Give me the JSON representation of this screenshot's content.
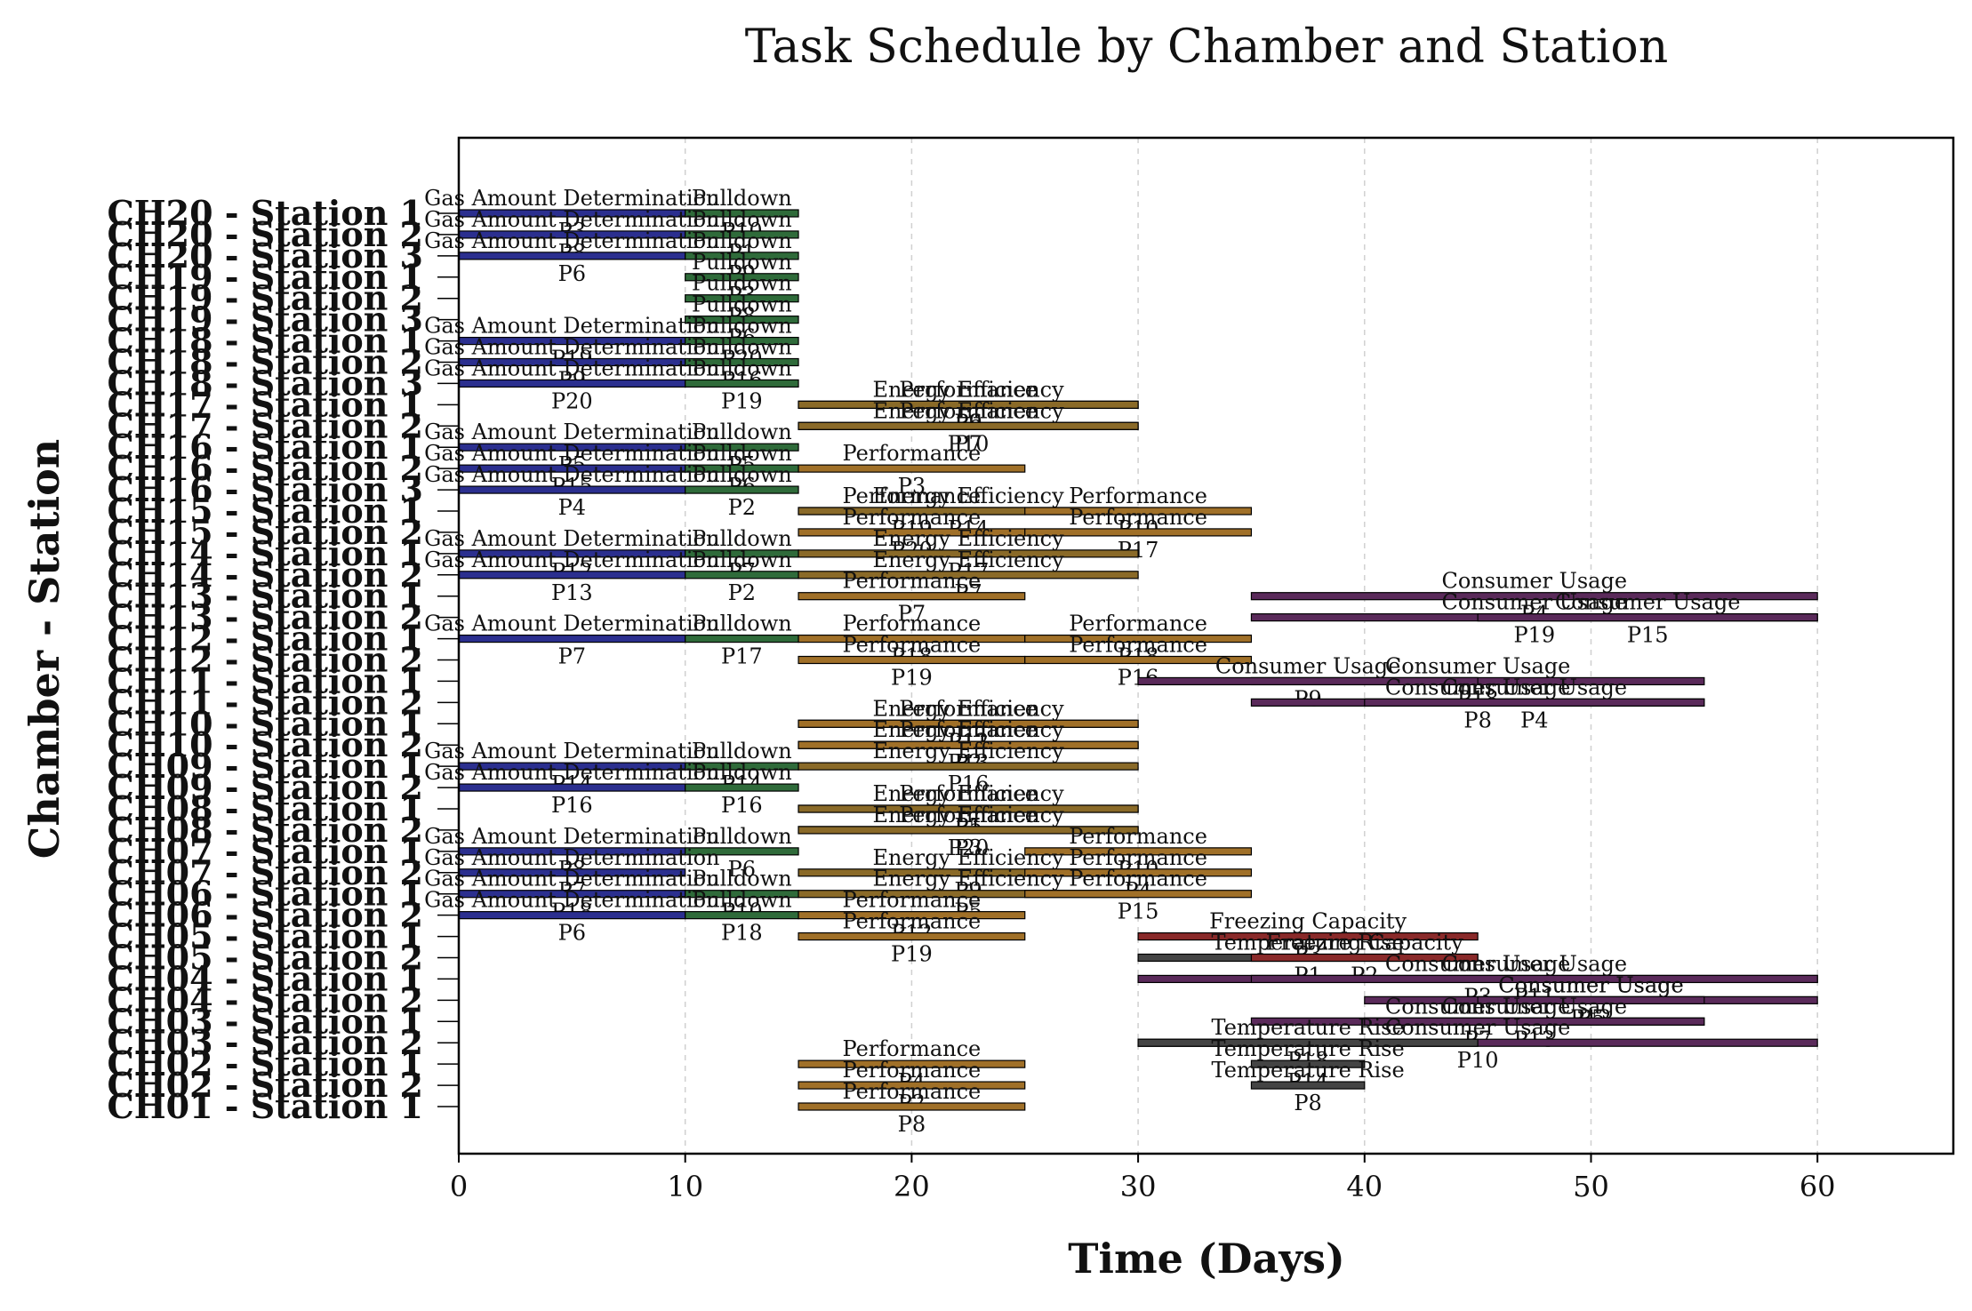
{
  "chart_data": {
    "type": "gantt",
    "title": "Task Schedule by Chamber and Station",
    "xlabel": "Time (Days)",
    "ylabel": "Chamber - Station",
    "xlim": [
      0,
      66
    ],
    "xticks": [
      0,
      10,
      20,
      30,
      40,
      50,
      60
    ],
    "grid": "x-dashed",
    "test_colors": {
      "Gas Amount Determination": "#2b2f8f",
      "Pulldown": "#2f6b3a",
      "Performance": "#a07028",
      "Energy Efficiency": "#8a6a28",
      "Consumer Usage": "#5a2a5a",
      "Freezing Capacity": "#8a2a2a",
      "Temperature Rise": "#444444"
    },
    "rows": [
      {
        "label": "CH20 - Station 1",
        "tasks": [
          {
            "test": "Gas Amount Determination",
            "start": 0,
            "end": 10,
            "product": "P3"
          },
          {
            "test": "Pulldown",
            "start": 10,
            "end": 15,
            "product": "P10"
          }
        ]
      },
      {
        "label": "CH20 - Station 2",
        "tasks": [
          {
            "test": "Gas Amount Determination",
            "start": 0,
            "end": 10,
            "product": "P8"
          },
          {
            "test": "Pulldown",
            "start": 10,
            "end": 15,
            "product": "P1"
          }
        ]
      },
      {
        "label": "CH20 - Station 3",
        "tasks": [
          {
            "test": "Gas Amount Determination",
            "start": 0,
            "end": 10,
            "product": "P6"
          },
          {
            "test": "Pulldown",
            "start": 10,
            "end": 15,
            "product": "P9"
          }
        ]
      },
      {
        "label": "CH19 - Station 1",
        "tasks": [
          {
            "test": "Pulldown",
            "start": 10,
            "end": 15,
            "product": "P3"
          }
        ]
      },
      {
        "label": "CH19 - Station 2",
        "tasks": [
          {
            "test": "Pulldown",
            "start": 10,
            "end": 15,
            "product": "P8"
          }
        ]
      },
      {
        "label": "CH19 - Station 3",
        "tasks": [
          {
            "test": "Pulldown",
            "start": 10,
            "end": 15,
            "product": "P6"
          }
        ]
      },
      {
        "label": "CH18 - Station 1",
        "tasks": [
          {
            "test": "Gas Amount Determination",
            "start": 0,
            "end": 10,
            "product": "P19"
          },
          {
            "test": "Pulldown",
            "start": 10,
            "end": 15,
            "product": "P20"
          }
        ]
      },
      {
        "label": "CH18 - Station 2",
        "tasks": [
          {
            "test": "Gas Amount Determination",
            "start": 0,
            "end": 10,
            "product": "P9"
          },
          {
            "test": "Pulldown",
            "start": 10,
            "end": 15,
            "product": "P16"
          }
        ]
      },
      {
        "label": "CH18 - Station 3",
        "tasks": [
          {
            "test": "Gas Amount Determination",
            "start": 0,
            "end": 10,
            "product": "P20"
          },
          {
            "test": "Pulldown",
            "start": 10,
            "end": 15,
            "product": "P19"
          }
        ]
      },
      {
        "label": "CH17 - Station 1",
        "tasks": [
          {
            "test": "Performance",
            "start": 15,
            "end": 30,
            "product": "P6"
          },
          {
            "test": "Energy Efficiency",
            "start": 15,
            "end": 30,
            "product": "P9"
          }
        ]
      },
      {
        "label": "CH17 - Station 2",
        "tasks": [
          {
            "test": "Performance",
            "start": 15,
            "end": 30,
            "product": "P7"
          },
          {
            "test": "Energy Efficiency",
            "start": 15,
            "end": 30,
            "product": "P10"
          }
        ]
      },
      {
        "label": "CH16 - Station 1",
        "tasks": [
          {
            "test": "Gas Amount Determination",
            "start": 0,
            "end": 10,
            "product": "P5"
          },
          {
            "test": "Pulldown",
            "start": 10,
            "end": 15,
            "product": "P5"
          }
        ]
      },
      {
        "label": "CH16 - Station 2",
        "tasks": [
          {
            "test": "Gas Amount Determination",
            "start": 0,
            "end": 10,
            "product": "P15"
          },
          {
            "test": "Pulldown",
            "start": 10,
            "end": 15,
            "product": "P6"
          },
          {
            "test": "Performance",
            "start": 15,
            "end": 25,
            "product": "P3"
          }
        ]
      },
      {
        "label": "CH16 - Station 3",
        "tasks": [
          {
            "test": "Gas Amount Determination",
            "start": 0,
            "end": 10,
            "product": "P4"
          },
          {
            "test": "Pulldown",
            "start": 10,
            "end": 15,
            "product": "P2"
          }
        ]
      },
      {
        "label": "CH15 - Station 1",
        "tasks": [
          {
            "test": "Performance",
            "start": 15,
            "end": 25,
            "product": "P19"
          },
          {
            "test": "Energy Efficiency",
            "start": 15,
            "end": 30,
            "product": "P14"
          },
          {
            "test": "Performance",
            "start": 25,
            "end": 35,
            "product": "P10"
          }
        ]
      },
      {
        "label": "CH15 - Station 2",
        "tasks": [
          {
            "test": "Performance",
            "start": 15,
            "end": 25,
            "product": "P20"
          },
          {
            "test": "Performance",
            "start": 25,
            "end": 35,
            "product": "P17"
          }
        ]
      },
      {
        "label": "CH14 - Station 1",
        "tasks": [
          {
            "test": "Gas Amount Determination",
            "start": 0,
            "end": 10,
            "product": "P12"
          },
          {
            "test": "Pulldown",
            "start": 10,
            "end": 15,
            "product": "P7"
          },
          {
            "test": "Energy Efficiency",
            "start": 15,
            "end": 30,
            "product": "P17"
          }
        ]
      },
      {
        "label": "CH14 - Station 2",
        "tasks": [
          {
            "test": "Gas Amount Determination",
            "start": 0,
            "end": 10,
            "product": "P13"
          },
          {
            "test": "Pulldown",
            "start": 10,
            "end": 15,
            "product": "P2"
          },
          {
            "test": "Energy Efficiency",
            "start": 15,
            "end": 30,
            "product": "P7"
          }
        ]
      },
      {
        "label": "CH13 - Station 1",
        "tasks": [
          {
            "test": "Performance",
            "start": 15,
            "end": 25,
            "product": "P7"
          },
          {
            "test": "Consumer Usage",
            "start": 35,
            "end": 60,
            "product": "P4"
          }
        ]
      },
      {
        "label": "CH13 - Station 2",
        "tasks": [
          {
            "test": "Consumer Usage",
            "start": 35,
            "end": 60,
            "product": "P19"
          },
          {
            "test": "Consumer Usage",
            "start": 45,
            "end": 60,
            "product": "P15"
          }
        ]
      },
      {
        "label": "CH12 - Station 1",
        "tasks": [
          {
            "test": "Gas Amount Determination",
            "start": 0,
            "end": 10,
            "product": "P7"
          },
          {
            "test": "Pulldown",
            "start": 10,
            "end": 15,
            "product": "P17"
          },
          {
            "test": "Performance",
            "start": 15,
            "end": 25,
            "product": "P18"
          },
          {
            "test": "Performance",
            "start": 25,
            "end": 35,
            "product": "P18"
          }
        ]
      },
      {
        "label": "CH12 - Station 2",
        "tasks": [
          {
            "test": "Performance",
            "start": 15,
            "end": 25,
            "product": "P19"
          },
          {
            "test": "Performance",
            "start": 25,
            "end": 35,
            "product": "P16"
          }
        ]
      },
      {
        "label": "CH11 - Station 1",
        "tasks": [
          {
            "test": "Consumer Usage",
            "start": 35,
            "end": 55,
            "product": "P18"
          },
          {
            "test": "Consumer Usage",
            "start": 30,
            "end": 45,
            "product": "P9"
          }
        ]
      },
      {
        "label": "CH11 - Station 2",
        "tasks": [
          {
            "test": "Consumer Usage",
            "start": 35,
            "end": 55,
            "product": "P8"
          },
          {
            "test": "Consumer Usage",
            "start": 40,
            "end": 55,
            "product": "P4"
          }
        ]
      },
      {
        "label": "CH10 - Station 1",
        "tasks": [
          {
            "test": "Energy Efficiency",
            "start": 15,
            "end": 30,
            "product": "P12"
          },
          {
            "test": "Performance",
            "start": 15,
            "end": 30,
            "product": "P11"
          }
        ]
      },
      {
        "label": "CH10 - Station 2",
        "tasks": [
          {
            "test": "Energy Efficiency",
            "start": 15,
            "end": 30,
            "product": "P13"
          },
          {
            "test": "Performance",
            "start": 15,
            "end": 30,
            "product": "P2"
          }
        ]
      },
      {
        "label": "CH09 - Station 1",
        "tasks": [
          {
            "test": "Gas Amount Determination",
            "start": 0,
            "end": 10,
            "product": "P14"
          },
          {
            "test": "Pulldown",
            "start": 10,
            "end": 15,
            "product": "P14"
          },
          {
            "test": "Energy Efficiency",
            "start": 15,
            "end": 30,
            "product": "P16"
          }
        ]
      },
      {
        "label": "CH09 - Station 2",
        "tasks": [
          {
            "test": "Gas Amount Determination",
            "start": 0,
            "end": 10,
            "product": "P16"
          },
          {
            "test": "Pulldown",
            "start": 10,
            "end": 15,
            "product": "P16"
          }
        ]
      },
      {
        "label": "CH08 - Station 1",
        "tasks": [
          {
            "test": "Performance",
            "start": 15,
            "end": 30,
            "product": "P1"
          },
          {
            "test": "Energy Efficiency",
            "start": 15,
            "end": 30,
            "product": "P5"
          }
        ]
      },
      {
        "label": "CH08 - Station 2",
        "tasks": [
          {
            "test": "Performance",
            "start": 15,
            "end": 30,
            "product": "P3"
          },
          {
            "test": "Energy Efficiency",
            "start": 15,
            "end": 30,
            "product": "P20"
          }
        ]
      },
      {
        "label": "CH07 - Station 1",
        "tasks": [
          {
            "test": "Gas Amount Determination",
            "start": 0,
            "end": 10,
            "product": "P8"
          },
          {
            "test": "Pulldown",
            "start": 10,
            "end": 15,
            "product": "P6"
          },
          {
            "test": "Performance",
            "start": 25,
            "end": 35,
            "product": "P10"
          }
        ]
      },
      {
        "label": "CH07 - Station 2",
        "tasks": [
          {
            "test": "Gas Amount Determination",
            "start": 0,
            "end": 10,
            "product": "P7"
          },
          {
            "test": "Energy Efficiency",
            "start": 15,
            "end": 30,
            "product": "P9"
          },
          {
            "test": "Performance",
            "start": 25,
            "end": 35,
            "product": "P4"
          }
        ]
      },
      {
        "label": "CH06 - Station 1",
        "tasks": [
          {
            "test": "Gas Amount Determination",
            "start": 0,
            "end": 10,
            "product": "P18"
          },
          {
            "test": "Pulldown",
            "start": 10,
            "end": 15,
            "product": "P10"
          },
          {
            "test": "Energy Efficiency",
            "start": 15,
            "end": 30,
            "product": "P5"
          },
          {
            "test": "Performance",
            "start": 25,
            "end": 35,
            "product": "P15"
          }
        ]
      },
      {
        "label": "CH06 - Station 2",
        "tasks": [
          {
            "test": "Gas Amount Determination",
            "start": 0,
            "end": 10,
            "product": "P6"
          },
          {
            "test": "Pulldown",
            "start": 10,
            "end": 15,
            "product": "P18"
          },
          {
            "test": "Performance",
            "start": 15,
            "end": 25,
            "product": "P12"
          }
        ]
      },
      {
        "label": "CH05 - Station 1",
        "tasks": [
          {
            "test": "Performance",
            "start": 15,
            "end": 25,
            "product": "P19"
          },
          {
            "test": "Freezing Capacity",
            "start": 30,
            "end": 45,
            "product": "P3"
          }
        ]
      },
      {
        "label": "CH05 - Station 2",
        "tasks": [
          {
            "test": "Temperature Rise",
            "start": 30,
            "end": 45,
            "product": "P1"
          },
          {
            "test": "Freezing Capacity",
            "start": 35,
            "end": 45,
            "product": "P2"
          }
        ]
      },
      {
        "label": "CH04 - Station 1",
        "tasks": [
          {
            "test": "Consumer Usage",
            "start": 30,
            "end": 60,
            "product": "P3"
          },
          {
            "test": "Consumer Usage",
            "start": 35,
            "end": 60,
            "product": "P11"
          }
        ]
      },
      {
        "label": "CH04 - Station 2",
        "tasks": [
          {
            "test": "Consumer Usage",
            "start": 40,
            "end": 60,
            "product": "P5"
          },
          {
            "test": "Consumer Usage",
            "start": 45,
            "end": 55,
            "product": "P12"
          }
        ]
      },
      {
        "label": "CH03 - Station 1",
        "tasks": [
          {
            "test": "Consumer Usage",
            "start": 35,
            "end": 55,
            "product": "P7"
          },
          {
            "test": "Consumer Usage",
            "start": 40,
            "end": 55,
            "product": "P13"
          }
        ]
      },
      {
        "label": "CH03 - Station 2",
        "tasks": [
          {
            "test": "Consumer Usage",
            "start": 30,
            "end": 60,
            "product": "P10"
          },
          {
            "test": "Temperature Rise",
            "start": 30,
            "end": 45,
            "product": "P18"
          }
        ]
      },
      {
        "label": "CH02 - Station 1",
        "tasks": [
          {
            "test": "Performance",
            "start": 15,
            "end": 25,
            "product": "P4"
          },
          {
            "test": "Temperature Rise",
            "start": 35,
            "end": 40,
            "product": "P14"
          }
        ]
      },
      {
        "label": "CH02 - Station 2",
        "tasks": [
          {
            "test": "Performance",
            "start": 15,
            "end": 25,
            "product": "P2"
          },
          {
            "test": "Temperature Rise",
            "start": 35,
            "end": 40,
            "product": "P8"
          }
        ]
      },
      {
        "label": "CH01 - Station 1",
        "tasks": [
          {
            "test": "Performance",
            "start": 15,
            "end": 25,
            "product": "P8"
          }
        ]
      }
    ]
  }
}
